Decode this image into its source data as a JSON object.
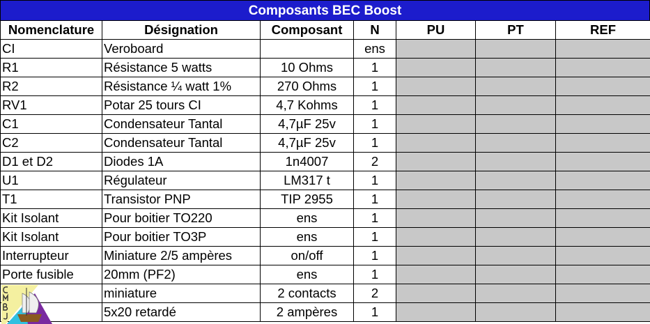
{
  "title": "Composants BEC Boost",
  "headers": [
    "Nomenclature",
    "Désignation",
    "Composant",
    "N",
    "PU",
    "PT",
    "REF"
  ],
  "rows": [
    [
      "CI",
      "Veroboard",
      "",
      "ens"
    ],
    [
      "R1",
      "Résistance 5 watts",
      "10 Ohms",
      "1"
    ],
    [
      "R2",
      "Résistance ¼ watt 1%",
      "270 Ohms",
      "1"
    ],
    [
      "RV1",
      "Potar 25 tours CI",
      "4,7 Kohms",
      "1"
    ],
    [
      "C1",
      "Condensateur Tantal",
      "4,7µF 25v",
      "1"
    ],
    [
      "C2",
      "Condensateur Tantal",
      "4,7µF 25v",
      "1"
    ],
    [
      "D1 et D2",
      "Diodes 1A",
      "1n4007",
      "2"
    ],
    [
      "U1",
      "Régulateur",
      "LM317 t",
      "1"
    ],
    [
      "T1",
      "Transistor PNP",
      "TIP 2955",
      "1"
    ],
    [
      "Kit Isolant",
      "Pour boitier TO220",
      "ens",
      "1"
    ],
    [
      "Kit Isolant",
      "Pour boitier  TO3P",
      "ens",
      "1"
    ],
    [
      "Interrupteur",
      "Miniature 2/5 ampères",
      "on/off",
      "1"
    ],
    [
      "Porte fusible",
      "20mm (PF2)",
      "ens",
      "1"
    ],
    [
      "",
      "miniature",
      "2 contacts",
      "2"
    ],
    [
      "",
      "5x20 retardé",
      "2 ampères",
      "1"
    ]
  ],
  "logo": {
    "letters": "CMBJ"
  },
  "colors": {
    "title_bg": "#1c1ccc",
    "empty_cell": "#c8c8c8"
  }
}
